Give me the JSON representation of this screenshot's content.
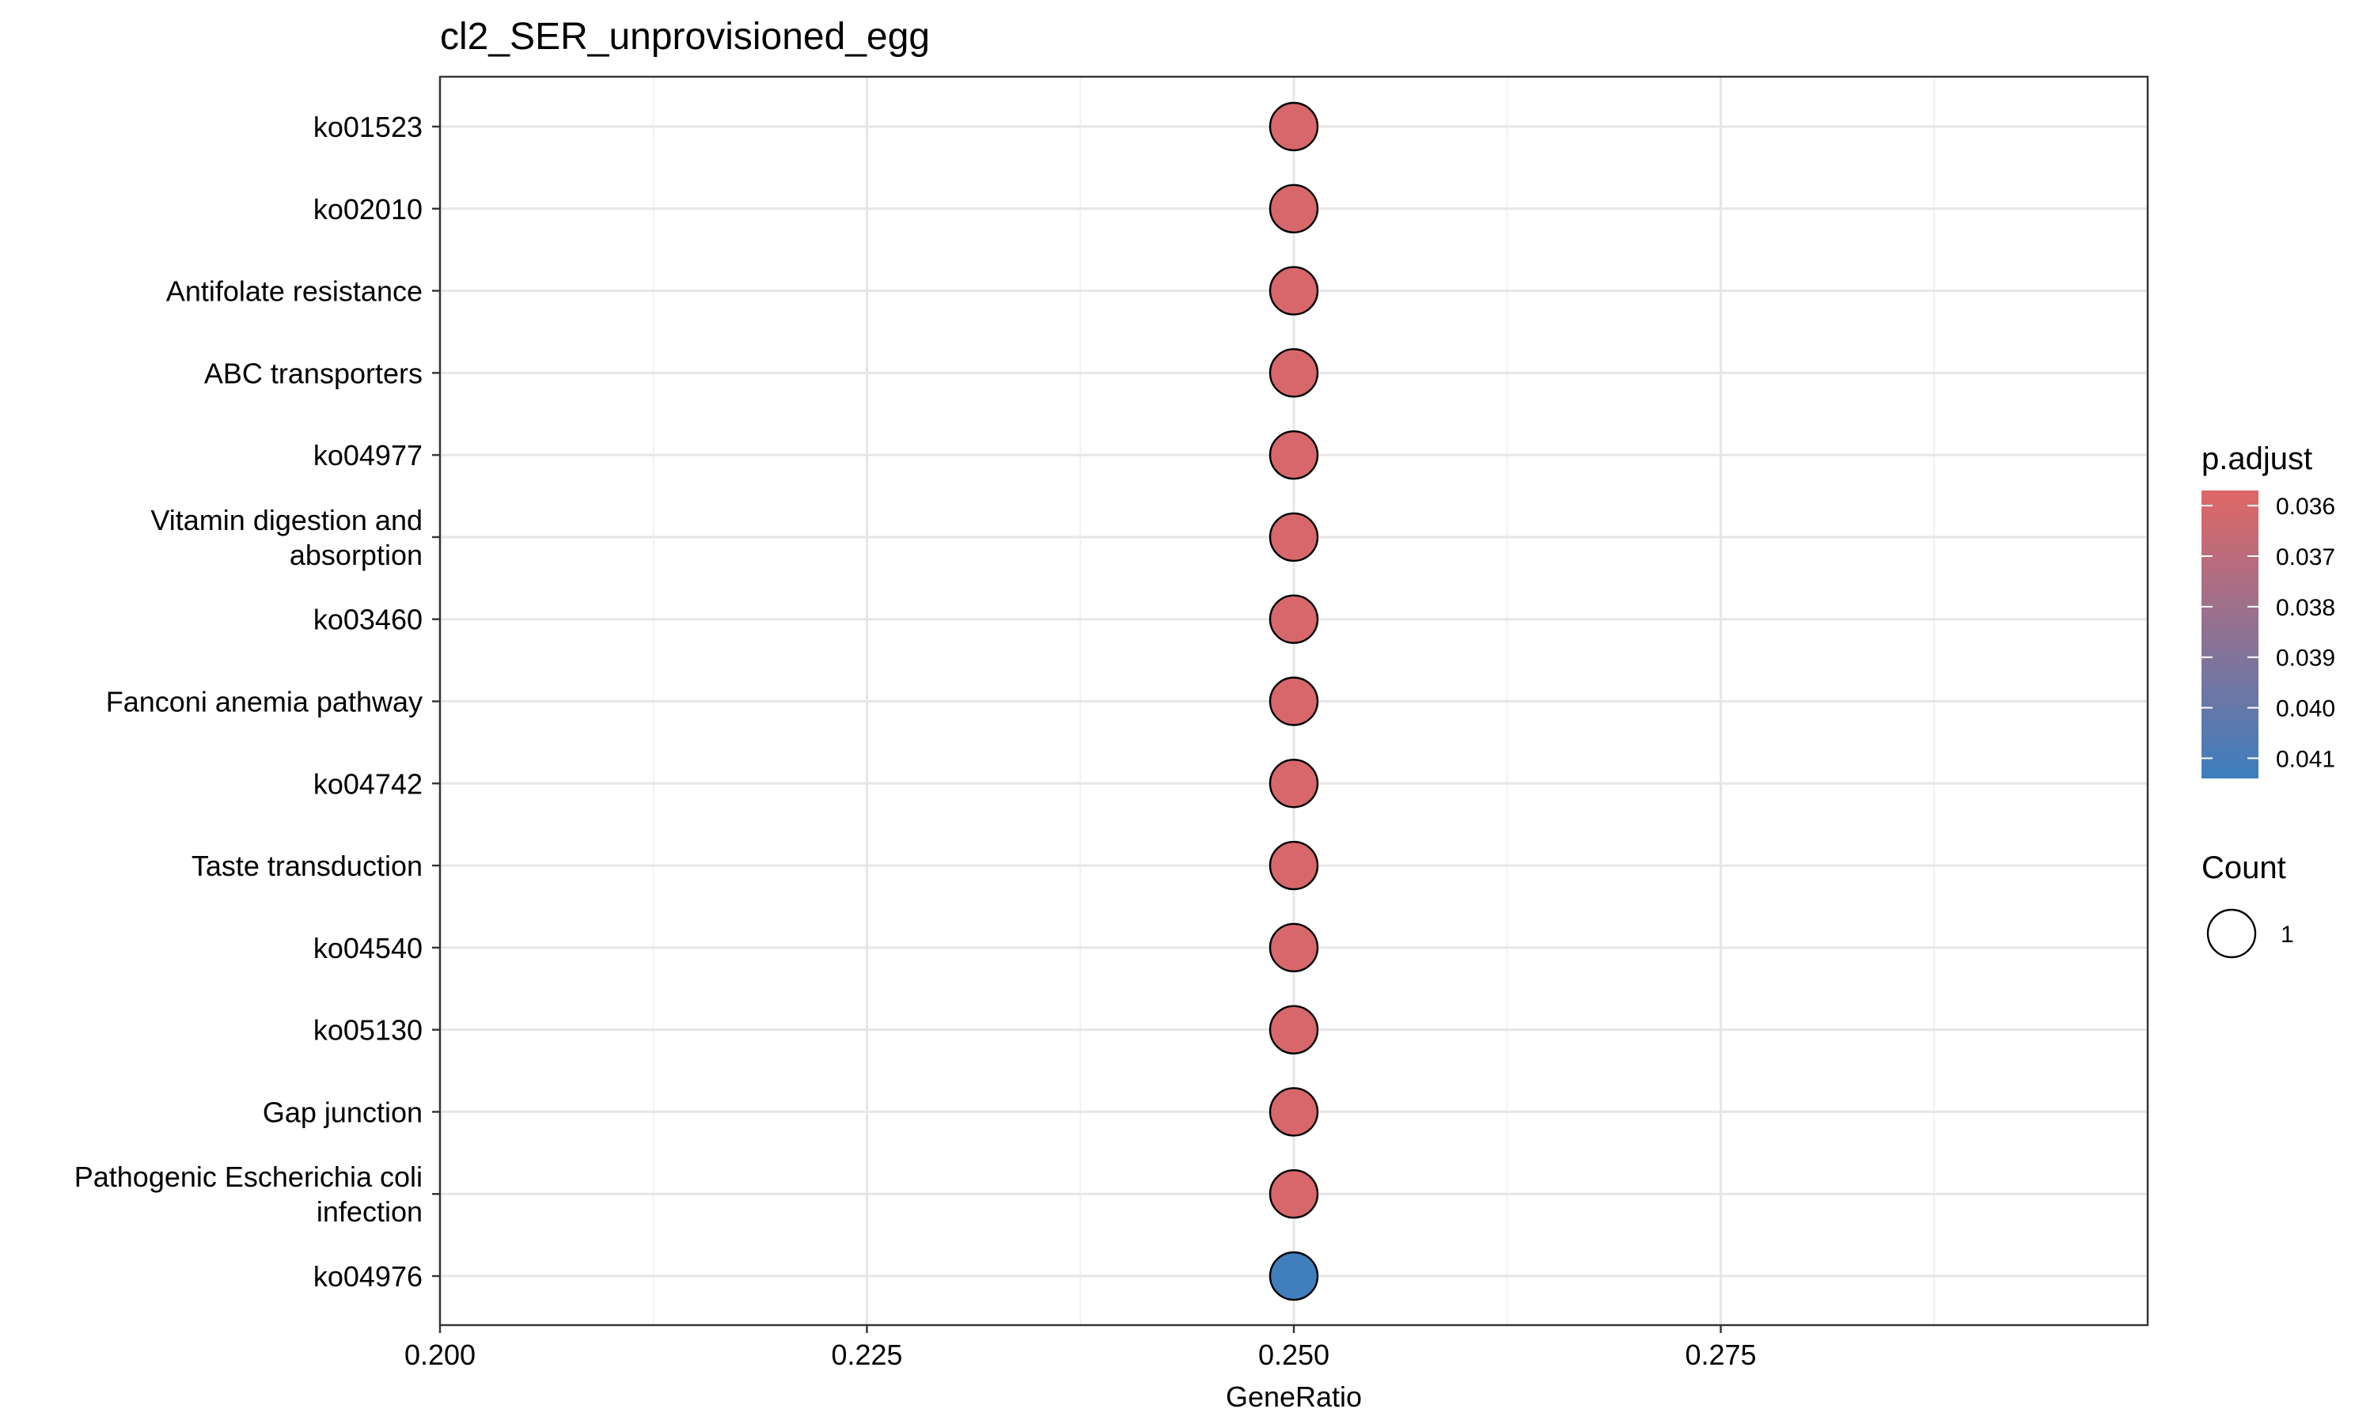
{
  "chart_data": {
    "type": "scatter",
    "title": "cl2_SER_unprovisioned_egg",
    "xlabel": "GeneRatio",
    "ylabel": "",
    "xlim": [
      0.2,
      0.3
    ],
    "x_ticks": [
      "0.200",
      "0.225",
      "0.250",
      "0.275"
    ],
    "x_tick_values": [
      0.2,
      0.225,
      0.25,
      0.275
    ],
    "grid": true,
    "categories": [
      [
        "ko01523"
      ],
      [
        "ko02010"
      ],
      [
        "Antifolate resistance"
      ],
      [
        "ABC transporters"
      ],
      [
        "ko04977"
      ],
      [
        "Vitamin digestion and",
        "absorption"
      ],
      [
        "ko03460"
      ],
      [
        "Fanconi anemia pathway"
      ],
      [
        "ko04742"
      ],
      [
        "Taste transduction"
      ],
      [
        "ko04540"
      ],
      [
        "ko05130"
      ],
      [
        "Gap junction"
      ],
      [
        "Pathogenic Escherichia coli",
        "infection"
      ],
      [
        "ko04976"
      ]
    ],
    "points": [
      {
        "generatio": 0.25,
        "p_adjust": 0.036,
        "count": 1
      },
      {
        "generatio": 0.25,
        "p_adjust": 0.036,
        "count": 1
      },
      {
        "generatio": 0.25,
        "p_adjust": 0.036,
        "count": 1
      },
      {
        "generatio": 0.25,
        "p_adjust": 0.036,
        "count": 1
      },
      {
        "generatio": 0.25,
        "p_adjust": 0.036,
        "count": 1
      },
      {
        "generatio": 0.25,
        "p_adjust": 0.036,
        "count": 1
      },
      {
        "generatio": 0.25,
        "p_adjust": 0.036,
        "count": 1
      },
      {
        "generatio": 0.25,
        "p_adjust": 0.036,
        "count": 1
      },
      {
        "generatio": 0.25,
        "p_adjust": 0.036,
        "count": 1
      },
      {
        "generatio": 0.25,
        "p_adjust": 0.036,
        "count": 1
      },
      {
        "generatio": 0.25,
        "p_adjust": 0.036,
        "count": 1
      },
      {
        "generatio": 0.25,
        "p_adjust": 0.036,
        "count": 1
      },
      {
        "generatio": 0.25,
        "p_adjust": 0.036,
        "count": 1
      },
      {
        "generatio": 0.25,
        "p_adjust": 0.036,
        "count": 1
      },
      {
        "generatio": 0.25,
        "p_adjust": 0.0413,
        "count": 1
      }
    ],
    "color_scale": {
      "title": "p.adjust",
      "low_color": "#e06666",
      "high_color": "#3d7ebf",
      "range": [
        0.0357,
        0.0414
      ],
      "ticks": [
        "0.036",
        "0.037",
        "0.038",
        "0.039",
        "0.040",
        "0.041"
      ],
      "tick_values": [
        0.036,
        0.037,
        0.038,
        0.039,
        0.04,
        0.041
      ]
    },
    "size_legend": {
      "title": "Count",
      "entries": [
        "1"
      ]
    },
    "legend_position": "right"
  }
}
